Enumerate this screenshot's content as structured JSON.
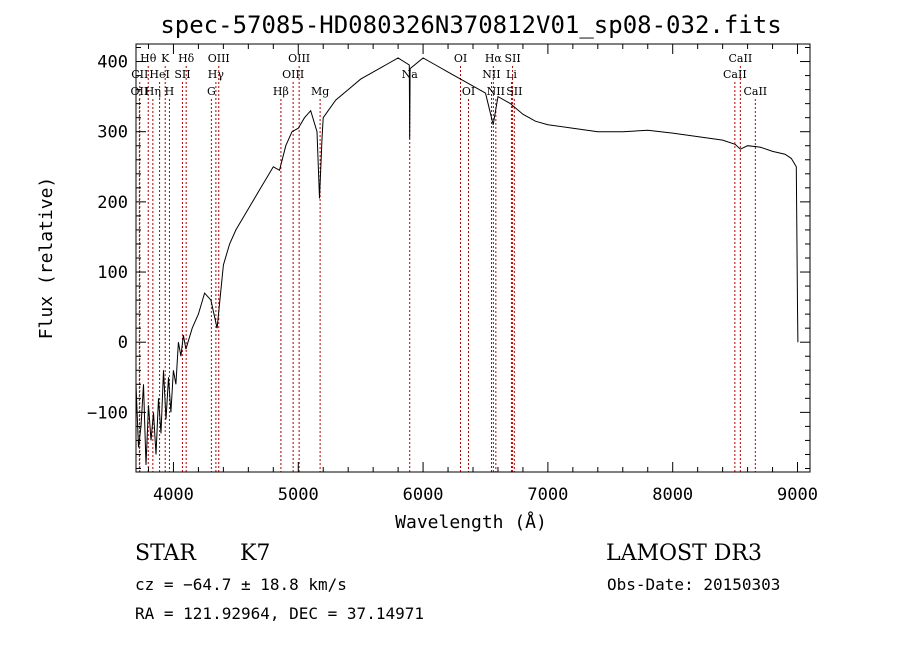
{
  "chart_data": {
    "type": "line",
    "title": "spec-57085-HD080326N370812V01_sp08-032.fits",
    "xlabel": "Wavelength (Å)",
    "ylabel": "Flux (relative)",
    "xlim": [
      3700,
      9100
    ],
    "ylim": [
      -185,
      425
    ],
    "x_ticks": [
      4000,
      5000,
      6000,
      7000,
      8000,
      9000
    ],
    "y_ticks": [
      -100,
      0,
      100,
      200,
      300,
      400
    ],
    "grid": false,
    "series": [
      {
        "values": [
          [
            3700,
            -60
          ],
          [
            3720,
            -150
          ],
          [
            3740,
            -120
          ],
          [
            3760,
            -60
          ],
          [
            3780,
            -175
          ],
          [
            3800,
            -90
          ],
          [
            3820,
            -140
          ],
          [
            3840,
            -100
          ],
          [
            3860,
            -160
          ],
          [
            3880,
            -80
          ],
          [
            3900,
            -130
          ],
          [
            3920,
            -40
          ],
          [
            3940,
            -110
          ],
          [
            3960,
            -50
          ],
          [
            3980,
            -100
          ],
          [
            4000,
            -40
          ],
          [
            4020,
            -60
          ],
          [
            4040,
            0
          ],
          [
            4060,
            -20
          ],
          [
            4080,
            10
          ],
          [
            4100,
            -10
          ],
          [
            4150,
            20
          ],
          [
            4200,
            40
          ],
          [
            4250,
            70
          ],
          [
            4300,
            60
          ],
          [
            4350,
            20
          ],
          [
            4400,
            110
          ],
          [
            4450,
            140
          ],
          [
            4500,
            160
          ],
          [
            4600,
            190
          ],
          [
            4700,
            220
          ],
          [
            4800,
            250
          ],
          [
            4850,
            245
          ],
          [
            4900,
            280
          ],
          [
            4950,
            300
          ],
          [
            5000,
            305
          ],
          [
            5050,
            320
          ],
          [
            5100,
            330
          ],
          [
            5150,
            300
          ],
          [
            5170,
            205
          ],
          [
            5190,
            290
          ],
          [
            5200,
            320
          ],
          [
            5300,
            345
          ],
          [
            5400,
            360
          ],
          [
            5500,
            375
          ],
          [
            5600,
            385
          ],
          [
            5700,
            395
          ],
          [
            5800,
            405
          ],
          [
            5890,
            395
          ],
          [
            5893,
            290
          ],
          [
            5896,
            390
          ],
          [
            6000,
            405
          ],
          [
            6100,
            395
          ],
          [
            6200,
            385
          ],
          [
            6300,
            375
          ],
          [
            6400,
            365
          ],
          [
            6500,
            355
          ],
          [
            6562,
            310
          ],
          [
            6600,
            350
          ],
          [
            6700,
            340
          ],
          [
            6800,
            325
          ],
          [
            6900,
            315
          ],
          [
            7000,
            310
          ],
          [
            7200,
            305
          ],
          [
            7400,
            300
          ],
          [
            7600,
            300
          ],
          [
            7800,
            302
          ],
          [
            8000,
            298
          ],
          [
            8200,
            293
          ],
          [
            8400,
            288
          ],
          [
            8500,
            282
          ],
          [
            8542,
            275
          ],
          [
            8600,
            280
          ],
          [
            8700,
            278
          ],
          [
            8800,
            272
          ],
          [
            8900,
            268
          ],
          [
            8950,
            262
          ],
          [
            8990,
            250
          ],
          [
            9000,
            50
          ],
          [
            9003,
            0
          ]
        ]
      }
    ],
    "lines": [
      {
        "label": "Hθ",
        "x": 3798,
        "row": 0
      },
      {
        "label": "OII",
        "x": 3727,
        "row": 2
      },
      {
        "label": "CII",
        "x": 3730,
        "row": 1
      },
      {
        "label": "Hη",
        "x": 3835,
        "row": 2
      },
      {
        "label": "HeI",
        "x": 3889,
        "row": 1
      },
      {
        "label": "K",
        "x": 3934,
        "row": 0
      },
      {
        "label": "H",
        "x": 3968,
        "row": 2
      },
      {
        "label": "SII",
        "x": 4072,
        "row": 1
      },
      {
        "label": "Hδ",
        "x": 4102,
        "row": 0
      },
      {
        "label": "OIII",
        "x": 4363,
        "row": 0
      },
      {
        "label": "Hγ",
        "x": 4340,
        "row": 1
      },
      {
        "label": "G",
        "x": 4304,
        "row": 2
      },
      {
        "label": "Hβ",
        "x": 4861,
        "row": 2
      },
      {
        "label": "OIII",
        "x": 4959,
        "row": 1
      },
      {
        "label": "OIII",
        "x": 5007,
        "row": 0
      },
      {
        "label": "Mg",
        "x": 5175,
        "row": 2
      },
      {
        "label": "Na",
        "x": 5893,
        "row": 1
      },
      {
        "label": "OI",
        "x": 6300,
        "row": 0
      },
      {
        "label": "OI",
        "x": 6364,
        "row": 2
      },
      {
        "label": "Hα",
        "x": 6563,
        "row": 0
      },
      {
        "label": "NII",
        "x": 6548,
        "row": 1
      },
      {
        "label": "NII",
        "x": 6583,
        "row": 2
      },
      {
        "label": "SII",
        "x": 6717,
        "row": 0
      },
      {
        "label": "Li",
        "x": 6708,
        "row": 1
      },
      {
        "label": "SII",
        "x": 6731,
        "row": 2
      },
      {
        "label": "CaII",
        "x": 8498,
        "row": 1
      },
      {
        "label": "CaII",
        "x": 8542,
        "row": 0
      },
      {
        "label": "CaII",
        "x": 8662,
        "row": 2
      }
    ]
  },
  "info": {
    "object_class": "STAR",
    "subclass": "K7",
    "survey": "LAMOST DR3",
    "cz": "cz = −64.7 ± 18.8 km/s",
    "obs_date": "Obs-Date: 20150303",
    "coords": "RA = 121.92964, DEC =  37.14971"
  },
  "colors": {
    "spectrum": "#000000",
    "line_markers": "#b40000",
    "axes": "#000000"
  }
}
